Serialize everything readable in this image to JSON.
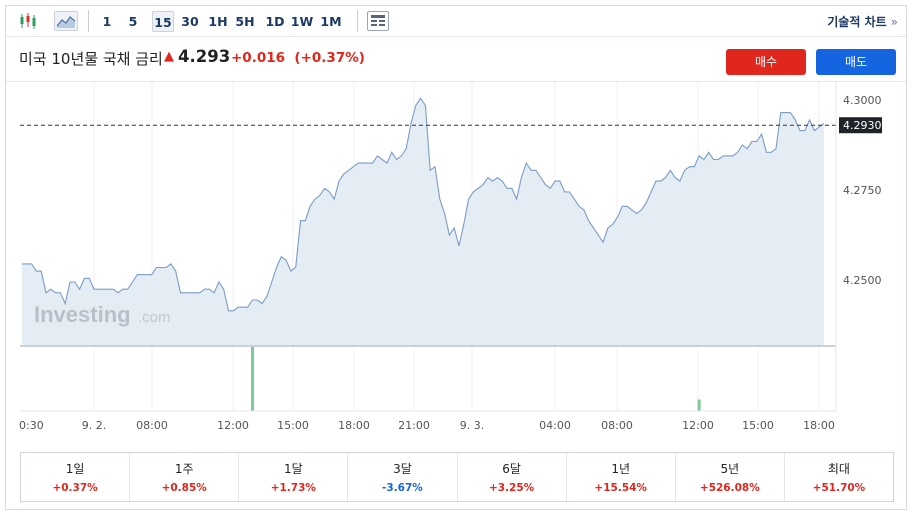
{
  "toolbar": {
    "intervals": [
      {
        "label": "1",
        "active": false
      },
      {
        "label": "5",
        "active": false
      },
      {
        "label": "15",
        "active": true
      },
      {
        "label": "30",
        "active": false
      },
      {
        "label": "1H",
        "active": false
      },
      {
        "label": "5H",
        "active": false
      },
      {
        "label": "1D",
        "active": false
      },
      {
        "label": "1W",
        "active": false
      },
      {
        "label": "1M",
        "active": false
      }
    ],
    "tech_chart_label": "기술적 차트",
    "tech_chart_arrow": "»"
  },
  "header": {
    "title": "미국 10년물 국채 금리",
    "price": "4.293",
    "change": "+0.016",
    "change_pct": "(+0.37%)",
    "buy_label": "매수",
    "sell_label": "매도"
  },
  "colors": {
    "up": "#e0271e",
    "down": "#1565e0",
    "line": "#7a9cc6",
    "area": "#e4ecf4",
    "volume": "#7fc99b"
  },
  "watermark": {
    "brand": "Investing",
    "suffix": ".com"
  },
  "chart_data": {
    "type": "area",
    "x_tick_labels": [
      "0:30",
      "9. 2.",
      "08:00",
      "12:00",
      "15:00",
      "18:00",
      "21:00",
      "9. 3.",
      "04:00",
      "08:00",
      "12:00",
      "15:00",
      "18:00"
    ],
    "y_tick_labels": [
      "4.3000",
      "4.2750",
      "4.2500"
    ],
    "ylim": [
      4.232,
      4.305
    ],
    "last_value_label": "4.2930",
    "last_value": 4.293,
    "values": [
      4.2545,
      4.2545,
      4.2545,
      4.2525,
      4.2525,
      4.2465,
      4.2475,
      4.2465,
      4.2465,
      4.2435,
      4.2495,
      4.2495,
      4.2475,
      4.2505,
      4.2505,
      4.2475,
      4.2475,
      4.2475,
      4.2475,
      4.2475,
      4.2465,
      4.2475,
      4.2475,
      4.2495,
      4.2515,
      4.2515,
      4.2515,
      4.2515,
      4.2535,
      4.2535,
      4.2535,
      4.2545,
      4.2525,
      4.2465,
      4.2465,
      4.2465,
      4.2465,
      4.2465,
      4.2475,
      4.2475,
      4.2465,
      4.2495,
      4.2475,
      4.2415,
      4.2415,
      4.2425,
      4.2425,
      4.2425,
      4.2445,
      4.2445,
      4.2435,
      4.2455,
      4.2495,
      4.2535,
      4.2565,
      4.2555,
      4.2525,
      4.2535,
      4.2665,
      4.2665,
      4.2705,
      4.2725,
      4.2735,
      4.2755,
      4.2745,
      4.2725,
      4.2775,
      4.2795,
      4.2805,
      4.2815,
      4.2825,
      4.2825,
      4.2825,
      4.2825,
      4.2845,
      4.2835,
      4.2825,
      4.2855,
      4.2835,
      4.2845,
      4.2865,
      4.2935,
      4.2985,
      4.3005,
      4.2985,
      4.2805,
      4.2815,
      4.2725,
      4.2685,
      4.2625,
      4.2645,
      4.2595,
      4.2655,
      4.2725,
      4.2745,
      4.2755,
      4.2765,
      4.2785,
      4.2775,
      4.2785,
      4.2775,
      4.2755,
      4.2755,
      4.2725,
      4.2785,
      4.2825,
      4.2805,
      4.2805,
      4.2785,
      4.2765,
      4.2755,
      4.2775,
      4.2775,
      4.2745,
      4.2745,
      4.2725,
      4.2705,
      4.2695,
      4.2665,
      4.2645,
      4.2625,
      4.2605,
      4.2645,
      4.2655,
      4.2675,
      4.2705,
      4.2705,
      4.2695,
      4.2685,
      4.2695,
      4.2715,
      4.2745,
      4.2775,
      4.2775,
      4.2785,
      4.2805,
      4.2785,
      4.2775,
      4.2805,
      4.2815,
      4.2815,
      4.2845,
      4.2835,
      4.2855,
      4.2835,
      4.2835,
      4.2845,
      4.2845,
      4.2845,
      4.2855,
      4.2875,
      4.2865,
      4.2885,
      4.2885,
      4.2905,
      4.2855,
      4.2855,
      4.2865,
      4.2965,
      4.2965,
      4.2965,
      4.2945,
      4.2915,
      4.2915,
      4.2945,
      4.2915,
      4.2925,
      4.2935
    ],
    "volume": [
      {
        "x_index": 48,
        "level": 1.0
      },
      {
        "x_index": 141,
        "level": 0.18
      }
    ]
  },
  "performance": [
    {
      "label": "1일",
      "value": "+0.37%",
      "dir": "up"
    },
    {
      "label": "1주",
      "value": "+0.85%",
      "dir": "up"
    },
    {
      "label": "1달",
      "value": "+1.73%",
      "dir": "up"
    },
    {
      "label": "3달",
      "value": "-3.67%",
      "dir": "down"
    },
    {
      "label": "6달",
      "value": "+3.25%",
      "dir": "up"
    },
    {
      "label": "1년",
      "value": "+15.54%",
      "dir": "up"
    },
    {
      "label": "5년",
      "value": "+526.08%",
      "dir": "up"
    },
    {
      "label": "최대",
      "value": "+51.70%",
      "dir": "up"
    }
  ]
}
